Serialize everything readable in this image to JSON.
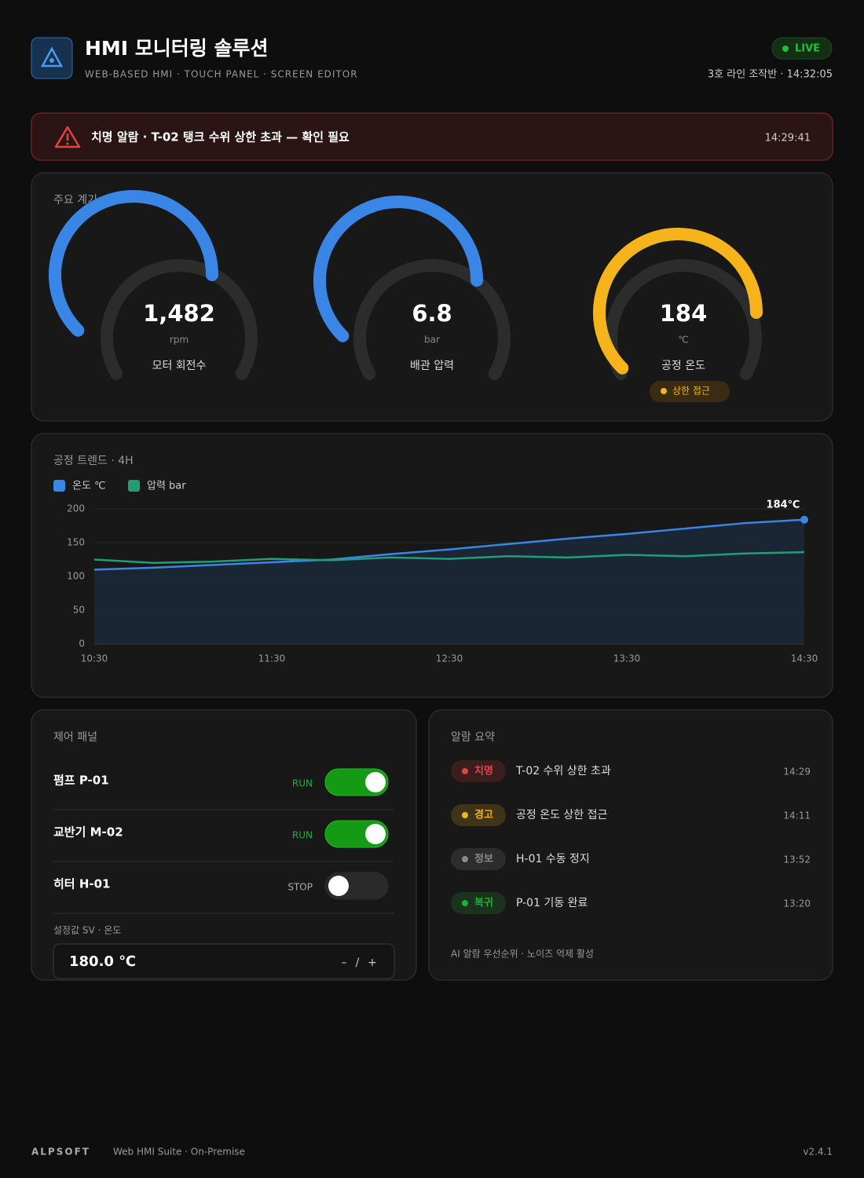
{
  "header": {
    "title": "HMI 모니터링 솔루션",
    "subtitle": "WEB-BASED HMI · TOUCH PANEL · SCREEN EDITOR",
    "live": "LIVE",
    "station": "3호 라인 조작반 · 14:32:05"
  },
  "alert": {
    "message": "치명 알람 · T-02 탱크 수위 상한 초과 — 확인 필요",
    "time": "14:29:41"
  },
  "gauges": {
    "title": "주요 계기",
    "items": [
      {
        "value": "1,482",
        "unit": "rpm",
        "label": "모터 회전수",
        "color": "#3a86e6"
      },
      {
        "value": "6.8",
        "unit": "bar",
        "label": "배관 압력",
        "color": "#3a86e6"
      },
      {
        "value": "184",
        "unit": "℃",
        "label": "공정 온도",
        "color": "#f5b41c",
        "badge": "상한 접근"
      }
    ]
  },
  "chart_data": {
    "type": "line",
    "title": "공정 트렌드 · 4H",
    "categories": [
      "10:30",
      null,
      null,
      "11:30",
      null,
      null,
      "12:30",
      null,
      null,
      "13:30",
      null,
      null,
      "14:30"
    ],
    "series": [
      {
        "name": "온도 ℃",
        "color": "#3a86e6",
        "values": [
          110,
          113,
          117,
          121,
          125,
          133,
          140,
          148,
          156,
          163,
          171,
          179,
          184
        ],
        "end_label": "184℃"
      },
      {
        "name": "압력 bar",
        "color": "#1f9e78",
        "values": [
          125,
          120,
          122,
          126,
          124,
          128,
          126,
          130,
          128,
          132,
          130,
          134,
          136
        ]
      }
    ],
    "ylim": [
      0,
      200
    ],
    "yticks": [
      0,
      50,
      100,
      150,
      200
    ],
    "grid": true
  },
  "controls": {
    "title": "제어 패널",
    "items": [
      {
        "name": "펌프 P-01",
        "state": "RUN",
        "on": true
      },
      {
        "name": "교반기 M-02",
        "state": "RUN",
        "on": true
      },
      {
        "name": "히터 H-01",
        "state": "STOP",
        "on": false
      }
    ],
    "setpoint": {
      "label": "설정값 SV · 온도",
      "value": "180.0 ℃",
      "decrement": "–",
      "separator": "/",
      "increment": "+"
    }
  },
  "alarms": {
    "title": "알람 요약",
    "items": [
      {
        "level": "치명",
        "message": "T-02 수위 상한 초과",
        "time": "14:29",
        "color": "#e04444"
      },
      {
        "level": "경고",
        "message": "공정 온도 상한 접근",
        "time": "14:11",
        "color": "#f5b41c"
      },
      {
        "level": "정보",
        "message": "H-01 수동 정지",
        "time": "13:52",
        "color": "#8a8a8a"
      },
      {
        "level": "복귀",
        "message": "P-01 기동 완료",
        "time": "13:20",
        "color": "#22b033"
      }
    ],
    "footnote": "AI 알람 우선순위 · 노이즈 억제 활성"
  },
  "footer": {
    "brand": "ALPSOFT",
    "product": "Web HMI Suite · On-Premise",
    "version": "v2.4.1"
  }
}
